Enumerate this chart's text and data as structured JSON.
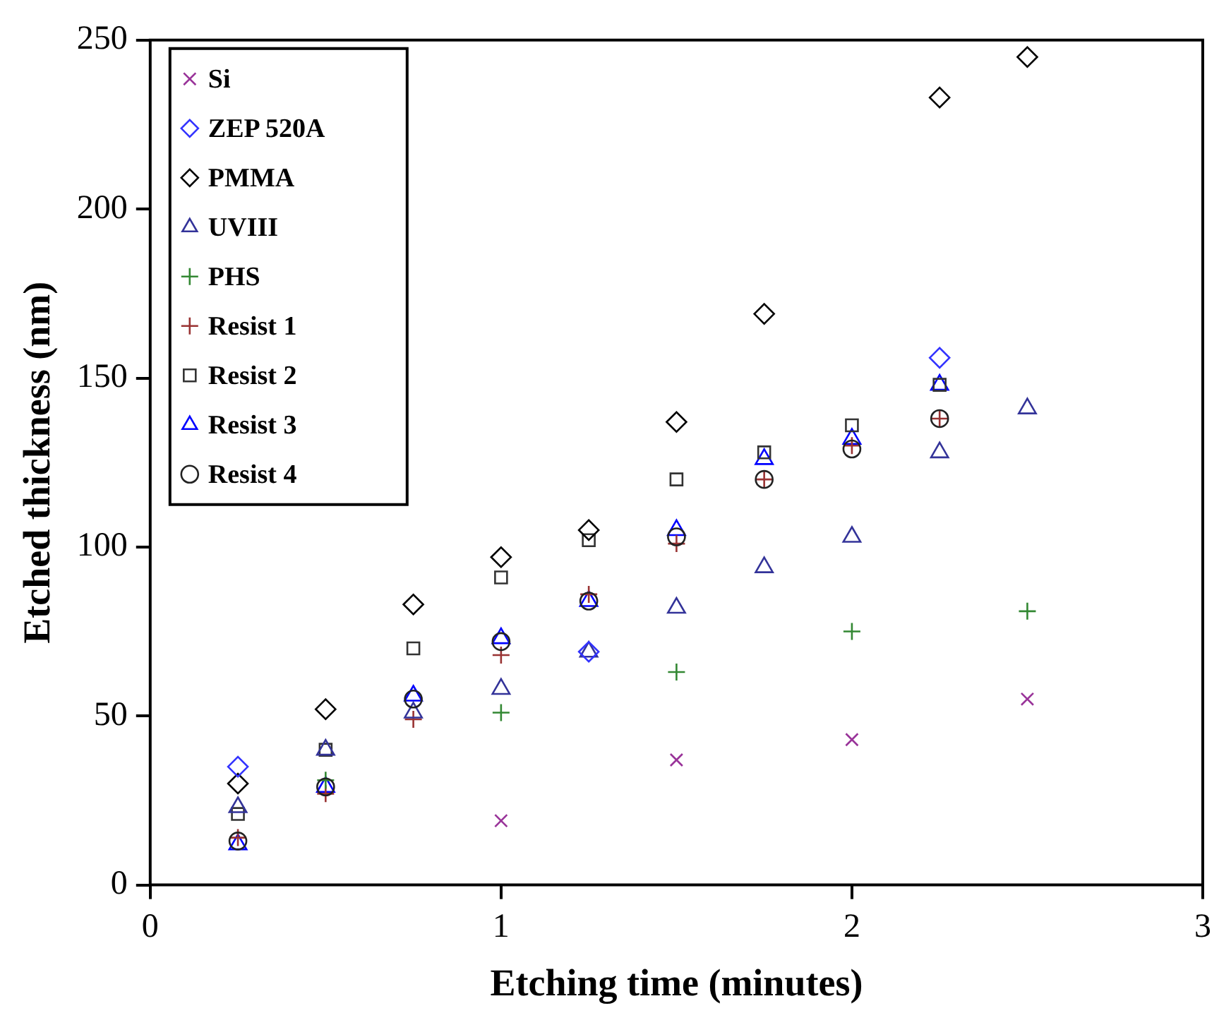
{
  "chart_data": {
    "type": "scatter",
    "xlabel": "Etching time (minutes)",
    "ylabel": "Etched thickness (nm)",
    "xlim": [
      0,
      3
    ],
    "xticks": [
      0,
      1,
      2,
      3
    ],
    "ylim": [
      0,
      250
    ],
    "yticks": [
      0,
      50,
      100,
      150,
      200,
      250
    ],
    "grid": false,
    "legend": "top left",
    "x": [
      0.25,
      0.5,
      0.75,
      1,
      1.25,
      1.5,
      1.75,
      2,
      2.25,
      2.5
    ],
    "series": [
      {
        "name": "Si",
        "color": "#993399",
        "marker": "x",
        "values": [
          null,
          null,
          null,
          19,
          null,
          37,
          null,
          43,
          null,
          55
        ]
      },
      {
        "name": "ZEP 520A",
        "color": "#3333ff",
        "marker": "diamond",
        "values": [
          35,
          null,
          null,
          null,
          69,
          null,
          null,
          null,
          156,
          null
        ]
      },
      {
        "name": "PMMA",
        "color": "#000000",
        "marker": "diamond",
        "values": [
          30,
          52,
          83,
          97,
          105,
          137,
          169,
          null,
          233,
          245
        ]
      },
      {
        "name": "UVIII",
        "color": "#333399",
        "marker": "triangle",
        "values": [
          23,
          40,
          51,
          58,
          69,
          82,
          94,
          103,
          128,
          141
        ]
      },
      {
        "name": "PHS",
        "color": "#338833",
        "marker": "cross",
        "values": [
          null,
          31,
          null,
          51,
          null,
          63,
          null,
          75,
          null,
          81
        ]
      },
      {
        "name": "Resist 1",
        "color": "#993333",
        "marker": "cross",
        "values": [
          14,
          27,
          49,
          68,
          86,
          101,
          120,
          130,
          138,
          null
        ]
      },
      {
        "name": "Resist 2",
        "color": "#333333",
        "marker": "square",
        "values": [
          21,
          40,
          70,
          91,
          102,
          120,
          128,
          136,
          148,
          null
        ]
      },
      {
        "name": "Resist 3",
        "color": "#0000ff",
        "marker": "triangle",
        "values": [
          12,
          29,
          56,
          73,
          84,
          105,
          126,
          132,
          148,
          null
        ]
      },
      {
        "name": "Resist 4",
        "color": "#222222",
        "marker": "circle",
        "values": [
          13,
          29,
          55,
          72,
          84,
          103,
          120,
          129,
          138,
          null
        ]
      }
    ]
  }
}
